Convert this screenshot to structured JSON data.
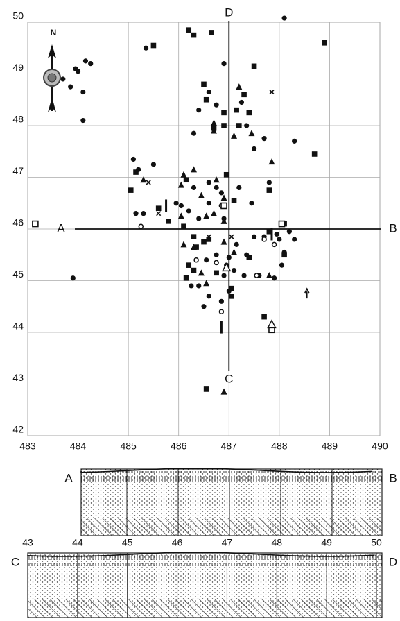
{
  "chart_data": [
    {
      "type": "scatter",
      "xlim": [
        483,
        490
      ],
      "ylim": [
        42,
        50
      ],
      "xticks": [
        483,
        484,
        485,
        486,
        487,
        488,
        489,
        490
      ],
      "yticks": [
        42,
        43,
        44,
        45,
        46,
        47,
        48,
        49,
        50
      ],
      "grid": true,
      "north_label": "N",
      "section_lines": [
        {
          "y": 46,
          "start_label": "A",
          "end_label": "B"
        },
        {
          "x": 487,
          "start_label": "C",
          "end_label": "D"
        }
      ],
      "series": [
        {
          "marker": "circle",
          "color": "#111111",
          "x": [
            488.1,
            483.9,
            483.7,
            483.85,
            484.0,
            484.15,
            484.25,
            484.1,
            484.1,
            483.95,
            485.35,
            486.9,
            486.6,
            486.75,
            486.4,
            486.3,
            487.35,
            487.5,
            487.7,
            487.25,
            488.3,
            485.1,
            485.2,
            485.5,
            485.15,
            485.3,
            485.95,
            486.05,
            486.2,
            486.4,
            486.3,
            486.6,
            486.75,
            486.85,
            486.6,
            486.9,
            487.2,
            487.45,
            487.8,
            487.7,
            487.5,
            487.95,
            488.2,
            488.3,
            487.15,
            487.35,
            487.0,
            486.75,
            486.55,
            486.35,
            486.2,
            486.9,
            487.1,
            487.3,
            486.4,
            486.6,
            486.85,
            486.5,
            487.0,
            486.95,
            487.6,
            487.9,
            488.05,
            488.1,
            486.25,
            488.0
          ],
          "y": [
            50.08,
            45.05,
            48.9,
            48.75,
            49.05,
            49.25,
            49.2,
            48.65,
            48.1,
            49.1,
            49.5,
            49.2,
            48.65,
            48.4,
            48.3,
            47.85,
            48.0,
            47.55,
            47.75,
            48.45,
            47.7,
            47.35,
            47.15,
            47.25,
            46.3,
            46.3,
            46.5,
            46.45,
            46.35,
            46.2,
            46.8,
            46.9,
            46.8,
            46.7,
            46.5,
            46.2,
            46.8,
            46.5,
            46.9,
            45.85,
            45.85,
            45.9,
            45.95,
            45.8,
            45.7,
            45.5,
            45.45,
            45.5,
            45.4,
            45.4,
            45.3,
            45.1,
            45.2,
            45.1,
            44.9,
            44.7,
            44.6,
            44.5,
            44.8,
            45.3,
            45.1,
            45.05,
            45.3,
            45.55,
            44.9,
            45.8
          ]
        },
        {
          "marker": "square",
          "color": "#111111",
          "x": [
            488.9,
            485.5,
            486.2,
            486.3,
            486.65,
            487.5,
            486.5,
            486.55,
            486.9,
            487.3,
            486.9,
            487.15,
            487.4,
            487.2,
            486.7,
            488.7,
            485.15,
            485.05,
            486.15,
            486.95,
            487.8,
            487.1,
            485.6,
            485.8,
            486.1,
            486.3,
            486.5,
            486.6,
            486.35,
            486.2,
            486.3,
            486.15,
            486.75,
            487.05,
            487.05,
            487.7,
            488.1,
            488.1,
            487.4,
            486.55,
            487.8
          ],
          "y": [
            49.6,
            49.55,
            49.85,
            49.75,
            49.8,
            49.15,
            48.8,
            48.5,
            48.25,
            48.6,
            48.0,
            48.3,
            48.25,
            48.0,
            47.95,
            47.45,
            47.1,
            46.75,
            46.95,
            47.05,
            46.75,
            46.55,
            46.4,
            46.15,
            46.05,
            45.85,
            45.75,
            45.8,
            45.65,
            45.3,
            45.2,
            45.05,
            45.15,
            44.7,
            44.85,
            44.3,
            46.1,
            45.5,
            45.45,
            42.9,
            45.95
          ]
        },
        {
          "marker": "triangle",
          "color": "#111111",
          "x": [
            487.2,
            486.7,
            487.1,
            487.45,
            486.7,
            487.85,
            485.3,
            486.1,
            486.3,
            486.45,
            486.05,
            486.75,
            486.9,
            486.55,
            486.7,
            486.9,
            486.1,
            486.3,
            486.9,
            487.1,
            486.45,
            486.55,
            487.8,
            486.9,
            486.05
          ],
          "y": [
            48.75,
            48.05,
            47.8,
            47.85,
            47.9,
            47.3,
            46.95,
            47.05,
            47.15,
            46.65,
            46.85,
            46.95,
            46.6,
            46.25,
            46.3,
            46.15,
            45.7,
            45.65,
            45.75,
            45.55,
            45.15,
            44.95,
            45.1,
            42.85,
            46.25
          ]
        },
        {
          "marker": "circle-open",
          "color": "#111111",
          "x": [
            485.25,
            486.85,
            487.7,
            487.55,
            486.35,
            486.75,
            486.85,
            487.9
          ],
          "y": [
            46.05,
            46.45,
            45.8,
            45.1,
            45.4,
            45.35,
            44.4,
            45.7
          ]
        },
        {
          "marker": "square-open",
          "color": "#111111",
          "x": [
            483.15,
            486.9,
            488.05,
            487.85
          ],
          "y": [
            46.1,
            46.45,
            46.1,
            44.05
          ]
        },
        {
          "marker": "triangle-open",
          "color": "#111111",
          "x": [
            486.95,
            487.85
          ],
          "y": [
            45.25,
            44.15
          ]
        },
        {
          "marker": "cross",
          "color": "#111111",
          "x": [
            487.85,
            485.4,
            485.6,
            486.6,
            487.05
          ],
          "y": [
            48.65,
            46.9,
            46.3,
            45.85,
            45.85
          ]
        },
        {
          "marker": "bar",
          "color": "#111111",
          "x": [
            485.75,
            486.85,
            487.85
          ],
          "y": [
            46.45,
            44.1,
            45.9
          ]
        },
        {
          "marker": "arrow",
          "color": "#111111",
          "x": [
            488.55
          ],
          "y": [
            44.75
          ]
        }
      ]
    },
    {
      "type": "section",
      "start_label": "A",
      "end_label": "B"
    },
    {
      "type": "section",
      "start_label": "C",
      "end_label": "D",
      "xlim": [
        43,
        50
      ],
      "xticks": [
        43,
        44,
        45,
        46,
        47,
        48,
        49,
        50
      ]
    }
  ]
}
